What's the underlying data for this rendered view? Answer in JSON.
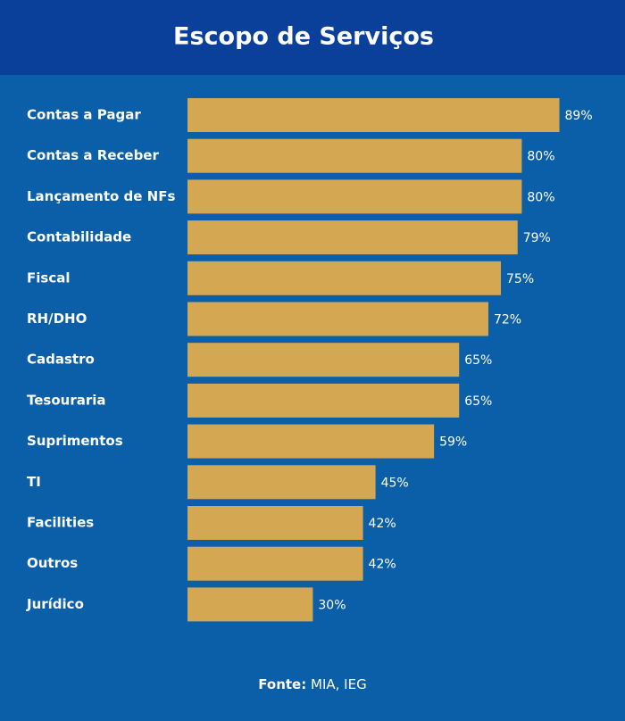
{
  "chart_data": {
    "type": "bar",
    "orientation": "horizontal",
    "title": "Escopo de Serviços",
    "categories": [
      "Contas a Pagar",
      "Contas a Receber",
      "Lançamento de NFs",
      "Contabilidade",
      "Fiscal",
      "RH/DHO",
      "Cadastro",
      "Tesouraria",
      "Suprimentos",
      "TI",
      "Facilities",
      "Outros",
      "Jurídico"
    ],
    "values": [
      89,
      80,
      80,
      79,
      75,
      72,
      65,
      65,
      59,
      45,
      42,
      42,
      30
    ],
    "value_labels": [
      "89%",
      "80%",
      "80%",
      "79%",
      "75%",
      "72%",
      "65%",
      "65%",
      "59%",
      "45%",
      "42%",
      "42%",
      "30%"
    ],
    "color": "#d4a853",
    "source": {
      "label": "Fonte:",
      "text": "MIA, IEG"
    }
  }
}
